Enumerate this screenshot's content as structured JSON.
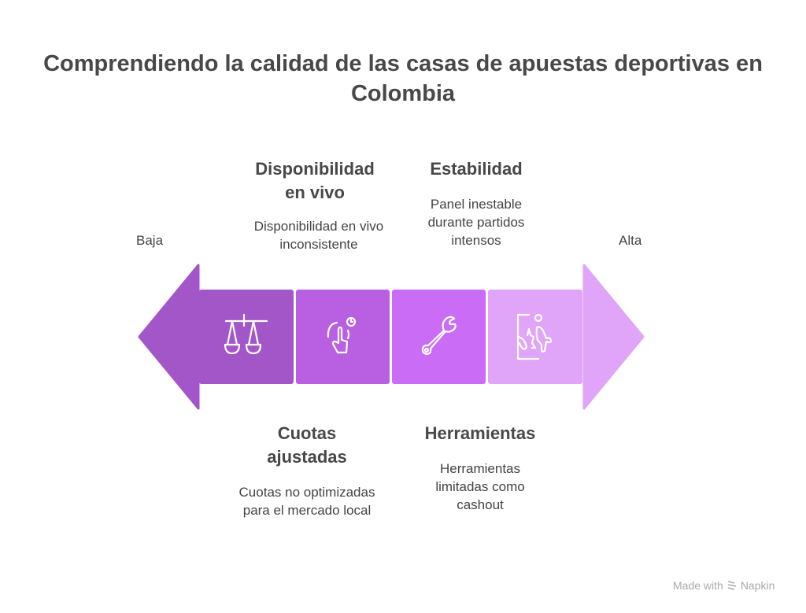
{
  "title": "Comprendiendo la calidad de las casas de apuestas deportivas en Colombia",
  "scale": {
    "low": "Baja",
    "high": "Alta"
  },
  "items": [
    {
      "heading": "Cuotas ajustadas",
      "description": "Cuotas no optimizadas para el mercado local",
      "icon": "balance-scale-icon",
      "color": "#A356C8"
    },
    {
      "heading": "Disponibilidad en vivo",
      "description": "Disponibilidad en vivo inconsistente",
      "icon": "touch-clock-icon",
      "color": "#B95FE2"
    },
    {
      "heading": "Herramientas",
      "description": "Herramientas limitadas como cashout",
      "icon": "wrench-icon",
      "color": "#CA6CF6"
    },
    {
      "heading": "Estabilidad",
      "description": "Panel inestable durante partidos intensos",
      "icon": "broken-screen-person-icon",
      "color": "#E0A4F9"
    }
  ],
  "footer": {
    "made_with": "Made with",
    "brand": "Napkin"
  }
}
